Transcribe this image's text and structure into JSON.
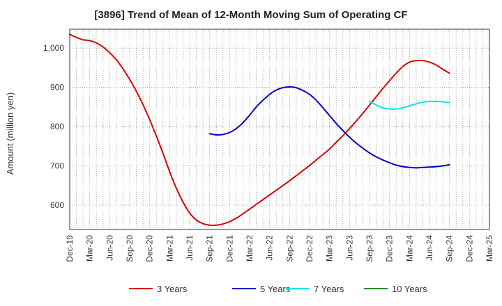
{
  "chart_data": {
    "type": "line",
    "title": "[3896]  Trend of Mean of 12-Month Moving Sum of Operating CF",
    "xlabel": "",
    "ylabel": "Amount (million yen)",
    "ylim": [
      538,
      1048
    ],
    "yticks": [
      600,
      700,
      800,
      900,
      1000
    ],
    "ytick_labels": [
      "600",
      "700",
      "800",
      "900",
      "1,000"
    ],
    "x_tick_labels": [
      "Dec-19",
      "Mar-20",
      "Jun-20",
      "Sep-20",
      "Dec-20",
      "Mar-21",
      "Jun-21",
      "Sep-21",
      "Dec-21",
      "Mar-22",
      "Jun-22",
      "Sep-22",
      "Dec-22",
      "Mar-23",
      "Jun-23",
      "Sep-23",
      "Dec-23",
      "Mar-24",
      "Jun-24",
      "Sep-24",
      "Dec-24",
      "Mar-25"
    ],
    "x_range_months": [
      0,
      63
    ],
    "grid": true,
    "legend_position": "bottom",
    "series": [
      {
        "name": "3 Years",
        "color": "#dd0000",
        "x": [
          0,
          1,
          2,
          3,
          4,
          5,
          6,
          7,
          8,
          9,
          10,
          11,
          12,
          13,
          14,
          15,
          16,
          17,
          18,
          19,
          20,
          21,
          22,
          23,
          24,
          25,
          26,
          27,
          28,
          29,
          30,
          31,
          32,
          33,
          34,
          35,
          36,
          37,
          38,
          39,
          40,
          41,
          42,
          43,
          44,
          45,
          46,
          47,
          48,
          49,
          50,
          51,
          52,
          53,
          54,
          55,
          56,
          57
        ],
        "values": [
          1035,
          1027,
          1021,
          1019,
          1013,
          1003,
          988,
          970,
          947,
          920,
          890,
          856,
          818,
          776,
          732,
          685,
          643,
          608,
          580,
          562,
          553,
          549,
          549,
          552,
          558,
          567,
          578,
          590,
          602,
          614,
          626,
          638,
          650,
          662,
          675,
          688,
          701,
          715,
          729,
          743,
          760,
          777,
          795,
          814,
          834,
          855,
          876,
          897,
          917,
          936,
          953,
          964,
          968,
          968,
          964,
          957,
          946,
          936
        ]
      },
      {
        "name": "5 Years",
        "color": "#0000cc",
        "x": [
          21,
          22,
          23,
          24,
          25,
          26,
          27,
          28,
          29,
          30,
          31,
          32,
          33,
          34,
          35,
          36,
          37,
          38,
          39,
          40,
          41,
          42,
          43,
          44,
          45,
          46,
          47,
          48,
          49,
          50,
          51,
          52,
          53,
          54,
          55,
          56,
          57
        ],
        "values": [
          782,
          779,
          780,
          785,
          795,
          810,
          829,
          850,
          867,
          882,
          893,
          899,
          901,
          899,
          892,
          882,
          867,
          848,
          828,
          808,
          790,
          773,
          758,
          745,
          733,
          723,
          715,
          708,
          702,
          698,
          696,
          695,
          696,
          697,
          698,
          700,
          703
        ]
      },
      {
        "name": "7 Years",
        "color": "#00e5ee",
        "x": [
          45,
          46,
          47,
          48,
          49,
          50,
          51,
          52,
          53,
          54,
          55,
          56,
          57
        ],
        "values": [
          864,
          855,
          848,
          845,
          845,
          848,
          853,
          858,
          862,
          864,
          864,
          863,
          861
        ]
      },
      {
        "name": "10 Years",
        "color": "#228b22",
        "x": [],
        "values": []
      }
    ]
  }
}
